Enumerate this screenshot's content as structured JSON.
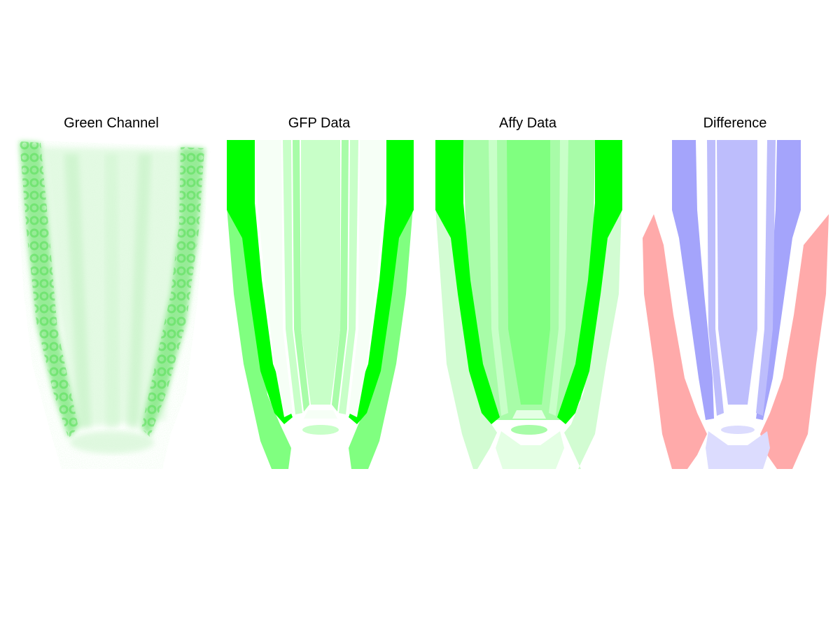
{
  "panels": [
    {
      "title": "Green Channel"
    },
    {
      "title": "GFP Data"
    },
    {
      "title": "Affy Data"
    },
    {
      "title": "Difference"
    }
  ],
  "colors": {
    "strong_green": "#00ff00",
    "medium_green": "#80ff80",
    "light_green": "#a8fca8",
    "pale_green": "#c8ffc8",
    "faint_green": "#e4ffe4",
    "near_white_green": "#f6fff6",
    "blue_strong": "#a4a4fb",
    "blue_medium": "#bdbdfc",
    "blue_light": "#dcdcfe",
    "red": "#ffaaaa"
  }
}
